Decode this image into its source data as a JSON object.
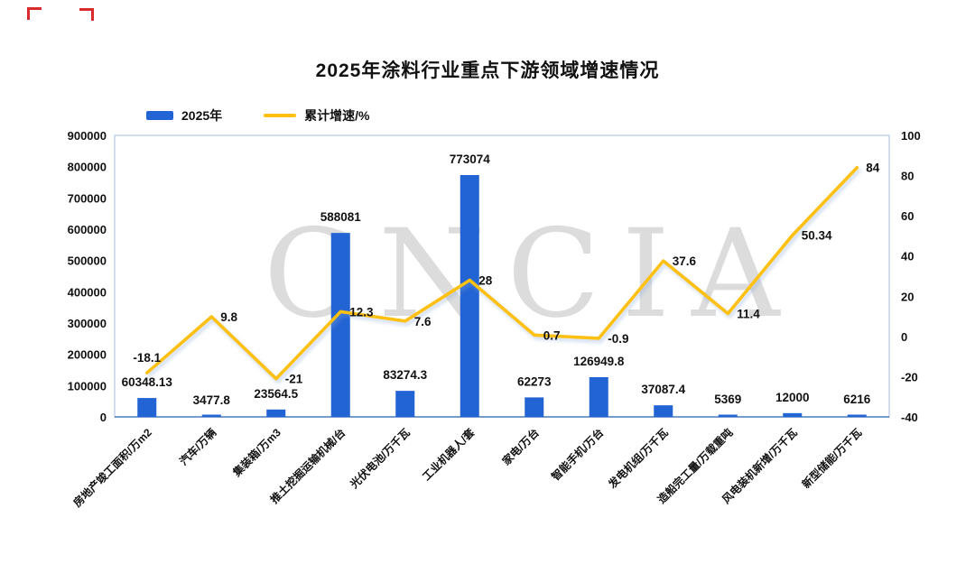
{
  "title": "2025年涂料行业重点下游领域增速情况",
  "watermark": "CNCIA",
  "chart_data": {
    "type": "bar",
    "combo": "bar+line",
    "title": "2025年涂料行业重点下游领域增速情况",
    "categories": [
      "房地产竣工面积/万m2",
      "汽车/万辆",
      "集装箱/万m3",
      "推土挖掘运输机械/台",
      "光伏电池/万千瓦",
      "工业机器人/套",
      "家电/万台",
      "智能手机/万台",
      "发电机组/万千瓦",
      "造船完工量/万载重吨",
      "风电装机新增/万千瓦",
      "新型储能/万千瓦"
    ],
    "series": [
      {
        "name": "2025年",
        "type": "bar",
        "axis": "left",
        "color": "#2364d4",
        "values": [
          60348.13,
          3477.8,
          23564.5,
          588081,
          83274.3,
          773074,
          62273,
          126949.8,
          37087.4,
          5369,
          12000,
          6216
        ]
      },
      {
        "name": "累计增速/%",
        "type": "line",
        "axis": "right",
        "color": "#fdc013",
        "values": [
          -18.1,
          9.8,
          -21,
          12.3,
          7.6,
          28,
          0.7,
          -0.9,
          37.6,
          11.4,
          50.34,
          84
        ]
      }
    ],
    "left_axis": {
      "min": 0,
      "max": 900000,
      "step": 100000
    },
    "right_axis": {
      "min": -40,
      "max": 100,
      "step": 20
    },
    "grid": false,
    "legend_position": "top-left",
    "data_labels": true
  }
}
